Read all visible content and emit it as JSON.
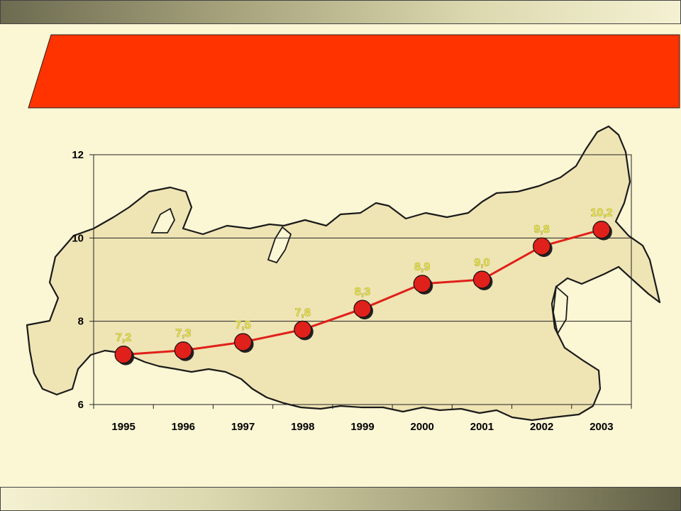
{
  "colors": {
    "background": "#fbf6d4",
    "banner": "#ff3300",
    "line": "#e0201a",
    "marker": "#e0201a",
    "data_label": "#f2ee45",
    "map_fill": "#efe4b4",
    "map_outline": "#1a1a1a"
  },
  "chart_data": {
    "type": "line",
    "title": "",
    "xlabel": "",
    "ylabel": "",
    "categories": [
      "1995",
      "1996",
      "1997",
      "1998",
      "1999",
      "2000",
      "2001",
      "2002",
      "2003"
    ],
    "values": [
      7.2,
      7.3,
      7.5,
      7.8,
      8.3,
      8.9,
      9.0,
      9.8,
      10.2
    ],
    "value_labels": [
      "7,2",
      "7,3",
      "7,5",
      "7,8",
      "8,3",
      "8,9",
      "9,0",
      "9,8",
      "10,2"
    ],
    "ylim": [
      6,
      12
    ],
    "yticks": [
      6,
      8,
      10,
      12
    ],
    "ytick_labels": [
      "6",
      "8",
      "10",
      "12"
    ],
    "grid": true,
    "legend": "none",
    "background_image": "map-of-russia"
  }
}
